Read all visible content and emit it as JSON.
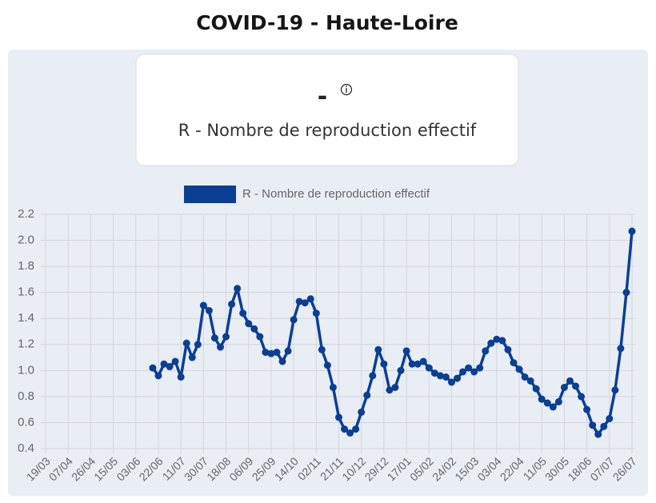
{
  "header": {
    "title": "COVID-19 - Haute-Loire"
  },
  "card": {
    "value": "-",
    "label": "R - Nombre de reproduction effectif"
  },
  "chart_data": {
    "type": "line",
    "categories": [
      "19/03",
      null,
      null,
      null,
      "07/04",
      null,
      null,
      null,
      "26/04",
      null,
      null,
      null,
      "15/05",
      null,
      null,
      null,
      "03/06",
      null,
      null,
      null,
      "22/06",
      null,
      null,
      null,
      "11/07",
      null,
      null,
      null,
      "30/07",
      null,
      null,
      null,
      "18/08",
      null,
      null,
      null,
      "06/09",
      null,
      null,
      null,
      "25/09",
      null,
      null,
      null,
      "14/10",
      null,
      null,
      null,
      "02/11",
      null,
      null,
      null,
      "21/11",
      null,
      null,
      null,
      "10/12",
      null,
      null,
      null,
      "29/12",
      null,
      null,
      null,
      "17/01",
      null,
      null,
      null,
      "05/02",
      null,
      null,
      null,
      "24/02",
      null,
      null,
      null,
      "15/03",
      null,
      null,
      null,
      "03/04",
      null,
      null,
      null,
      "22/04",
      null,
      null,
      null,
      "11/05",
      null,
      null,
      null,
      "30/05",
      null,
      null,
      null,
      "18/06",
      null,
      null,
      null,
      "07/07",
      null,
      null,
      null,
      "26/07"
    ],
    "series": [
      {
        "name": "R - Nombre de reproduction effectif",
        "color": "#0b3f94",
        "values": [
          null,
          null,
          null,
          null,
          null,
          null,
          null,
          null,
          null,
          null,
          null,
          null,
          null,
          null,
          null,
          null,
          null,
          null,
          null,
          1.02,
          0.96,
          1.05,
          1.03,
          1.07,
          0.95,
          1.21,
          1.1,
          1.2,
          1.5,
          1.46,
          1.25,
          1.18,
          1.26,
          1.51,
          1.63,
          1.44,
          1.36,
          1.32,
          1.26,
          1.14,
          1.13,
          1.14,
          1.07,
          1.15,
          1.39,
          1.53,
          1.52,
          1.55,
          1.44,
          1.16,
          1.04,
          0.87,
          0.64,
          0.55,
          0.52,
          0.55,
          0.68,
          0.81,
          0.96,
          1.16,
          1.05,
          0.85,
          0.87,
          1.0,
          1.15,
          1.05,
          1.05,
          1.07,
          1.02,
          0.98,
          0.96,
          0.95,
          0.91,
          0.94,
          0.99,
          1.02,
          0.99,
          1.02,
          1.15,
          1.21,
          1.24,
          1.23,
          1.16,
          1.06,
          1.01,
          0.95,
          0.92,
          0.86,
          0.78,
          0.75,
          0.72,
          0.76,
          0.87,
          0.92,
          0.88,
          0.8,
          0.7,
          0.58,
          0.51,
          0.57,
          0.63,
          0.85,
          1.17,
          1.6,
          2.07
        ]
      }
    ],
    "ylim": [
      0.4,
      2.2
    ],
    "yticks": [
      2.2,
      {
        "value": 2,
        "label": "2.0"
      },
      1.8,
      1.6,
      1.4,
      1.2,
      {
        "value": 1,
        "label": "1.0"
      },
      0.8,
      0.6,
      0.4
    ],
    "grid": true
  }
}
